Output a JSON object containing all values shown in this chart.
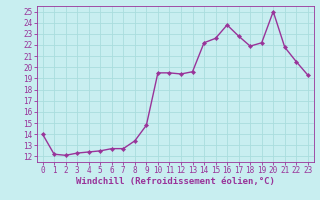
{
  "x": [
    0,
    1,
    2,
    3,
    4,
    5,
    6,
    7,
    8,
    9,
    10,
    11,
    12,
    13,
    14,
    15,
    16,
    17,
    18,
    19,
    20,
    21,
    22,
    23
  ],
  "y": [
    14.0,
    12.2,
    12.1,
    12.3,
    12.4,
    12.5,
    12.7,
    12.7,
    13.4,
    14.8,
    19.5,
    19.5,
    19.4,
    19.6,
    22.2,
    22.6,
    23.8,
    22.8,
    21.9,
    22.2,
    25.0,
    21.8,
    20.5,
    19.3
  ],
  "line_color": "#993399",
  "marker": "D",
  "marker_size": 2.2,
  "line_width": 1.0,
  "xlabel": "Windchill (Refroidissement éolien,°C)",
  "xlabel_fontsize": 6.5,
  "bg_color": "#c8eef0",
  "grid_color": "#aadddd",
  "tick_color": "#993399",
  "axis_color": "#993399",
  "ylim": [
    11.5,
    25.5
  ],
  "yticks": [
    12,
    13,
    14,
    15,
    16,
    17,
    18,
    19,
    20,
    21,
    22,
    23,
    24,
    25
  ],
  "xlim": [
    -0.5,
    23.5
  ],
  "xticks": [
    0,
    1,
    2,
    3,
    4,
    5,
    6,
    7,
    8,
    9,
    10,
    11,
    12,
    13,
    14,
    15,
    16,
    17,
    18,
    19,
    20,
    21,
    22,
    23
  ],
  "tick_fontsize": 5.5
}
